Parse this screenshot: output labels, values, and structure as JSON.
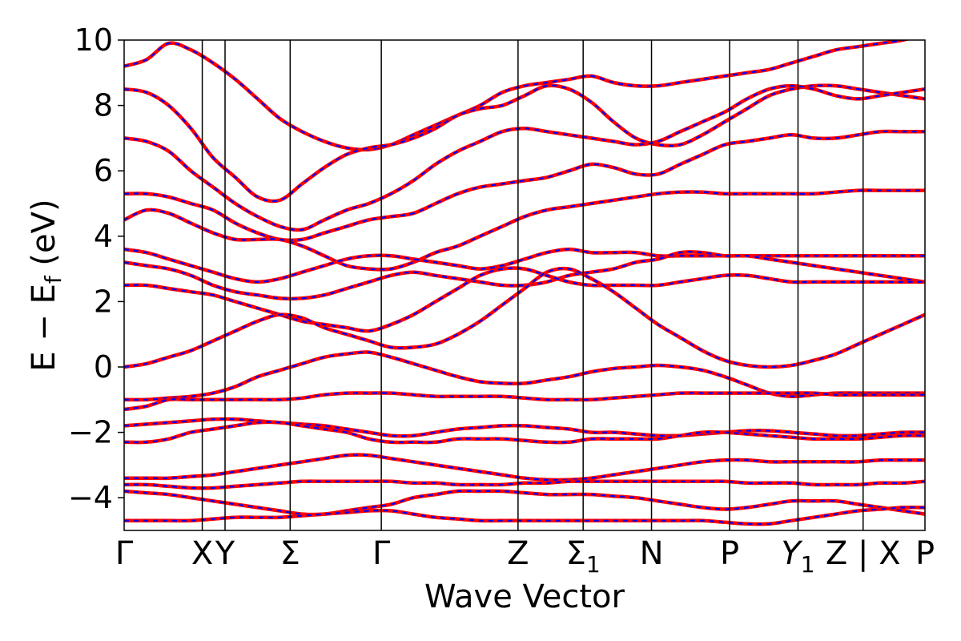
{
  "chart_data": {
    "type": "line",
    "title": "",
    "xlabel": "Wave Vector",
    "ylabel": "E − E_f (eV)",
    "ylabel_parts": {
      "main": "E − E",
      "sub": "f",
      "unit": " (eV)"
    },
    "ylim": [
      -5,
      10
    ],
    "yticks": [
      -4,
      -2,
      0,
      2,
      4,
      6,
      8,
      10
    ],
    "ytick_labels": [
      "−4",
      "−2",
      "0",
      "2",
      "4",
      "6",
      "8",
      "10"
    ],
    "grid": false,
    "legend": "none",
    "x_range": [
      0,
      12.3
    ],
    "kpoints": [
      {
        "pos": 0.0,
        "label": "Γ",
        "sub": ""
      },
      {
        "pos": 1.2,
        "label": "X",
        "sub": ""
      },
      {
        "pos": 1.55,
        "label": "Y",
        "sub": ""
      },
      {
        "pos": 2.55,
        "label": "Σ",
        "sub": ""
      },
      {
        "pos": 3.95,
        "label": "Γ",
        "sub": ""
      },
      {
        "pos": 6.05,
        "label": "Z",
        "sub": ""
      },
      {
        "pos": 7.05,
        "label": "Σ",
        "sub": "1"
      },
      {
        "pos": 8.1,
        "label": "N",
        "sub": ""
      },
      {
        "pos": 9.3,
        "label": "P",
        "sub": ""
      },
      {
        "pos": 10.35,
        "label": "Y",
        "sub": "1",
        "italic": true
      },
      {
        "pos": 11.35,
        "label": "Z | X",
        "sub": ""
      },
      {
        "pos": 12.3,
        "label": "P",
        "sub": ""
      }
    ],
    "series_colors": {
      "dft": "#ff0000",
      "wannier": "#0000ff"
    },
    "bands": [
      [
        9.2,
        9.4,
        9.9,
        9.7,
        9.3,
        8.8,
        8.2,
        7.6,
        7.2,
        6.9,
        6.7,
        6.65,
        6.8,
        7.1,
        7.4,
        7.7,
        8.0,
        8.4,
        8.6,
        8.7,
        8.8,
        8.9,
        8.7,
        8.6,
        8.6,
        8.7,
        8.8,
        8.9,
        9.0,
        9.1,
        9.3,
        9.5,
        9.7,
        9.8,
        9.9,
        10.0,
        10.2
      ],
      [
        8.5,
        8.4,
        8.0,
        7.3,
        6.4,
        5.8,
        5.2,
        5.1,
        5.6,
        6.1,
        6.5,
        6.7,
        6.8,
        7.0,
        7.3,
        7.7,
        7.9,
        8.0,
        8.3,
        8.6,
        8.5,
        8.1,
        7.5,
        7.0,
        6.8,
        6.8,
        7.1,
        7.5,
        7.9,
        8.3,
        8.5,
        8.6,
        8.6,
        8.5,
        8.4,
        8.3,
        8.2
      ],
      [
        7.0,
        6.9,
        6.6,
        6.0,
        5.5,
        5.0,
        4.6,
        4.3,
        4.2,
        4.5,
        4.8,
        5.0,
        5.3,
        5.7,
        6.2,
        6.6,
        6.9,
        7.2,
        7.3,
        7.2,
        7.1,
        7.0,
        6.9,
        6.8,
        6.9,
        7.2,
        7.5,
        7.8,
        8.2,
        8.5,
        8.6,
        8.5,
        8.3,
        8.2,
        8.3,
        8.4,
        8.5
      ],
      [
        5.3,
        5.3,
        5.2,
        5.0,
        4.8,
        4.4,
        4.1,
        3.9,
        3.9,
        4.1,
        4.3,
        4.5,
        4.6,
        4.7,
        5.0,
        5.3,
        5.5,
        5.6,
        5.7,
        5.8,
        6.0,
        6.2,
        6.1,
        5.9,
        5.9,
        6.2,
        6.5,
        6.8,
        6.9,
        7.0,
        7.1,
        7.0,
        7.0,
        7.1,
        7.2,
        7.2,
        7.2
      ],
      [
        4.5,
        4.8,
        4.7,
        4.4,
        4.1,
        3.9,
        3.9,
        3.9,
        3.7,
        3.4,
        3.1,
        3.0,
        3.0,
        3.2,
        3.5,
        3.7,
        4.0,
        4.3,
        4.6,
        4.8,
        4.9,
        5.0,
        5.1,
        5.2,
        5.3,
        5.35,
        5.35,
        5.3,
        5.3,
        5.3,
        5.3,
        5.3,
        5.35,
        5.4,
        5.4,
        5.4,
        5.4
      ],
      [
        3.6,
        3.5,
        3.3,
        3.1,
        2.9,
        2.7,
        2.6,
        2.7,
        2.9,
        3.1,
        3.3,
        3.4,
        3.4,
        3.3,
        3.2,
        3.1,
        3.0,
        3.1,
        3.3,
        3.5,
        3.6,
        3.5,
        3.5,
        3.5,
        3.4,
        3.4,
        3.4,
        3.4,
        3.4,
        3.4,
        3.4,
        3.4,
        3.4,
        3.4,
        3.4,
        3.4,
        3.4
      ],
      [
        3.2,
        3.1,
        3.0,
        2.8,
        2.5,
        2.3,
        2.2,
        2.1,
        2.1,
        2.2,
        2.4,
        2.6,
        2.8,
        2.9,
        2.8,
        2.7,
        2.6,
        2.5,
        2.5,
        2.6,
        2.8,
        2.9,
        3.0,
        3.2,
        3.3,
        3.5,
        3.5,
        3.4,
        3.4,
        3.3,
        3.2,
        3.1,
        3.0,
        2.9,
        2.8,
        2.7,
        2.6
      ],
      [
        2.5,
        2.5,
        2.4,
        2.3,
        2.2,
        2.0,
        1.8,
        1.6,
        1.4,
        1.3,
        1.2,
        1.1,
        1.3,
        1.6,
        2.0,
        2.4,
        2.8,
        3.0,
        3.0,
        2.8,
        2.6,
        2.5,
        2.5,
        2.5,
        2.5,
        2.6,
        2.7,
        2.8,
        2.8,
        2.7,
        2.6,
        2.6,
        2.6,
        2.6,
        2.6,
        2.6,
        2.6
      ],
      [
        0.0,
        0.1,
        0.3,
        0.5,
        0.8,
        1.1,
        1.4,
        1.6,
        1.5,
        1.2,
        1.0,
        0.8,
        0.6,
        0.6,
        0.7,
        1.0,
        1.4,
        1.9,
        2.4,
        2.9,
        3.0,
        2.7,
        2.3,
        1.8,
        1.3,
        0.9,
        0.5,
        0.2,
        0.05,
        0.0,
        0.05,
        0.2,
        0.4,
        0.7,
        1.0,
        1.3,
        1.6
      ],
      [
        -1.0,
        -1.0,
        -0.95,
        -0.9,
        -0.8,
        -0.6,
        -0.3,
        -0.1,
        0.1,
        0.3,
        0.4,
        0.45,
        0.3,
        0.1,
        -0.1,
        -0.3,
        -0.45,
        -0.5,
        -0.5,
        -0.4,
        -0.3,
        -0.15,
        -0.05,
        0.0,
        0.05,
        0.0,
        -0.1,
        -0.3,
        -0.55,
        -0.8,
        -0.9,
        -0.85,
        -0.8,
        -0.8,
        -0.8,
        -0.8,
        -0.8
      ],
      [
        -1.3,
        -1.2,
        -1.0,
        -1.0,
        -1.0,
        -1.0,
        -1.0,
        -1.0,
        -0.95,
        -0.85,
        -0.8,
        -0.8,
        -0.8,
        -0.85,
        -0.9,
        -0.9,
        -0.9,
        -0.9,
        -0.95,
        -1.0,
        -1.0,
        -1.0,
        -0.95,
        -0.9,
        -0.85,
        -0.8,
        -0.8,
        -0.8,
        -0.8,
        -0.8,
        -0.8,
        -0.8,
        -0.85,
        -0.85,
        -0.85,
        -0.85,
        -0.85
      ],
      [
        -1.8,
        -1.75,
        -1.7,
        -1.65,
        -1.6,
        -1.6,
        -1.65,
        -1.7,
        -1.75,
        -1.8,
        -1.9,
        -2.0,
        -2.1,
        -2.1,
        -2.0,
        -1.9,
        -1.85,
        -1.8,
        -1.8,
        -1.85,
        -1.9,
        -2.0,
        -2.0,
        -2.05,
        -2.1,
        -2.1,
        -2.05,
        -2.0,
        -1.95,
        -1.95,
        -2.0,
        -2.05,
        -2.1,
        -2.1,
        -2.05,
        -2.0,
        -2.0
      ],
      [
        -2.3,
        -2.3,
        -2.2,
        -2.0,
        -1.9,
        -1.8,
        -1.7,
        -1.7,
        -1.8,
        -1.9,
        -2.0,
        -2.2,
        -2.3,
        -2.3,
        -2.3,
        -2.2,
        -2.2,
        -2.2,
        -2.25,
        -2.3,
        -2.3,
        -2.2,
        -2.2,
        -2.2,
        -2.2,
        -2.1,
        -2.0,
        -2.0,
        -2.05,
        -2.1,
        -2.15,
        -2.2,
        -2.2,
        -2.2,
        -2.15,
        -2.1,
        -2.1
      ],
      [
        -3.4,
        -3.4,
        -3.4,
        -3.35,
        -3.3,
        -3.2,
        -3.1,
        -3.0,
        -2.9,
        -2.8,
        -2.7,
        -2.7,
        -2.8,
        -2.9,
        -3.0,
        -3.1,
        -3.2,
        -3.3,
        -3.4,
        -3.45,
        -3.45,
        -3.4,
        -3.3,
        -3.2,
        -3.1,
        -3.0,
        -2.9,
        -2.85,
        -2.85,
        -2.9,
        -2.9,
        -2.9,
        -2.9,
        -2.9,
        -2.85,
        -2.85,
        -2.85
      ],
      [
        -3.6,
        -3.6,
        -3.65,
        -3.7,
        -3.7,
        -3.65,
        -3.6,
        -3.55,
        -3.5,
        -3.5,
        -3.5,
        -3.5,
        -3.5,
        -3.55,
        -3.55,
        -3.6,
        -3.6,
        -3.6,
        -3.55,
        -3.55,
        -3.5,
        -3.5,
        -3.5,
        -3.5,
        -3.5,
        -3.5,
        -3.5,
        -3.5,
        -3.55,
        -3.55,
        -3.55,
        -3.6,
        -3.6,
        -3.6,
        -3.55,
        -3.55,
        -3.5
      ],
      [
        -3.8,
        -3.85,
        -3.9,
        -4.0,
        -4.1,
        -4.2,
        -4.3,
        -4.4,
        -4.5,
        -4.5,
        -4.4,
        -4.3,
        -4.2,
        -4.0,
        -3.9,
        -3.8,
        -3.8,
        -3.8,
        -3.85,
        -3.9,
        -3.9,
        -3.9,
        -3.95,
        -4.0,
        -4.1,
        -4.2,
        -4.3,
        -4.35,
        -4.3,
        -4.2,
        -4.1,
        -4.1,
        -4.1,
        -4.2,
        -4.3,
        -4.4,
        -4.5
      ],
      [
        -4.7,
        -4.7,
        -4.7,
        -4.7,
        -4.65,
        -4.6,
        -4.6,
        -4.6,
        -4.55,
        -4.5,
        -4.45,
        -4.4,
        -4.4,
        -4.5,
        -4.6,
        -4.65,
        -4.7,
        -4.7,
        -4.7,
        -4.7,
        -4.7,
        -4.7,
        -4.7,
        -4.7,
        -4.7,
        -4.7,
        -4.7,
        -4.75,
        -4.8,
        -4.8,
        -4.7,
        -4.6,
        -4.5,
        -4.4,
        -4.35,
        -4.3,
        -4.3
      ]
    ]
  }
}
